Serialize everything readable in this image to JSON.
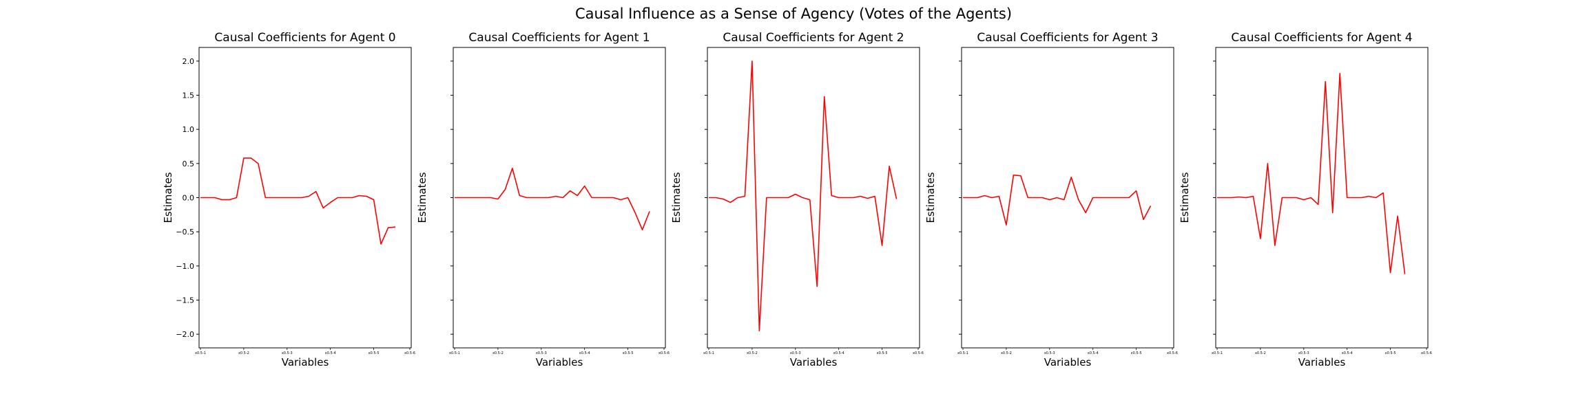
{
  "figure_title": "Causal Influence as a Sense of Agency (Votes of the Agents)",
  "chart_data": [
    {
      "type": "line",
      "title": "Causal Coefficients for Agent 0",
      "xlabel": "Variables",
      "ylabel": "Estimates",
      "ylim": [
        -2.2,
        2.2
      ],
      "y_ticks": [
        2.0,
        1.5,
        1.0,
        0.5,
        0.0,
        -0.5,
        -1.0,
        -1.5,
        -2.0
      ],
      "y_tick_labels": [
        "2.0",
        "1.5",
        "1.0",
        "0.5",
        "0.0",
        "−0.5",
        "−1.0",
        "−1.5",
        "−2.0"
      ],
      "x_tick_positions": [
        0,
        6,
        12,
        18,
        24,
        29
      ],
      "x_tick_labels": [
        "x0.5-1",
        "x0.5-2",
        "x0.5-3",
        "x0.5-4",
        "x0.5-5",
        "x0.5-6"
      ],
      "color": "#ff0000",
      "values": [
        0.0,
        0.0,
        0.0,
        -0.03,
        -0.03,
        0.0,
        0.58,
        0.58,
        0.5,
        0.0,
        0.0,
        0.0,
        0.0,
        0.0,
        0.0,
        0.02,
        0.09,
        -0.15,
        -0.07,
        0.0,
        0.0,
        0.0,
        0.03,
        0.02,
        -0.03,
        -0.68,
        -0.44,
        -0.43
      ]
    },
    {
      "type": "line",
      "title": "Causal Coefficients for Agent 1",
      "xlabel": "Variables",
      "ylabel": "Estimates",
      "ylim": [
        -2.2,
        2.2
      ],
      "x_tick_positions": [
        0,
        6,
        12,
        18,
        24,
        29
      ],
      "x_tick_labels": [
        "x0.5-1",
        "x0.5-2",
        "x0.5-3",
        "x0.5-4",
        "x0.5-5",
        "x0.5-6"
      ],
      "color": "#ff0000",
      "values": [
        0.0,
        0.0,
        0.0,
        0.0,
        0.0,
        0.0,
        -0.02,
        0.12,
        0.43,
        0.03,
        0.0,
        0.0,
        0.0,
        0.0,
        0.02,
        0.0,
        0.1,
        0.03,
        0.17,
        0.0,
        0.0,
        0.0,
        0.0,
        -0.03,
        0.0,
        -0.22,
        -0.47,
        -0.2
      ]
    },
    {
      "type": "line",
      "title": "Causal Coefficients for Agent 2",
      "xlabel": "Variables",
      "ylabel": "Estimates",
      "ylim": [
        -2.2,
        2.2
      ],
      "x_tick_positions": [
        0,
        6,
        12,
        18,
        24,
        29
      ],
      "x_tick_labels": [
        "x0.5-1",
        "x0.5-2",
        "x0.5-3",
        "x0.5-4",
        "x0.5-5",
        "x0.5-6"
      ],
      "color": "#ff0000",
      "values": [
        0.0,
        0.0,
        -0.02,
        -0.07,
        0.0,
        0.02,
        2.0,
        -1.95,
        0.0,
        0.0,
        0.0,
        0.0,
        0.05,
        0.0,
        -0.03,
        -1.3,
        1.48,
        0.03,
        0.0,
        0.0,
        0.0,
        0.02,
        -0.01,
        0.02,
        -0.7,
        0.46,
        -0.02
      ]
    },
    {
      "type": "line",
      "title": "Causal Coefficients for Agent 3",
      "xlabel": "Variables",
      "ylabel": "Estimates",
      "ylim": [
        -2.2,
        2.2
      ],
      "x_tick_positions": [
        0,
        6,
        12,
        18,
        24,
        29
      ],
      "x_tick_labels": [
        "x0.5-1",
        "x0.5-2",
        "x0.5-3",
        "x0.5-4",
        "x0.5-5",
        "x0.5-6"
      ],
      "color": "#ff0000",
      "values": [
        0.0,
        0.0,
        0.0,
        0.03,
        0.0,
        0.02,
        -0.4,
        0.33,
        0.32,
        0.0,
        0.0,
        0.0,
        -0.03,
        0.0,
        -0.03,
        0.3,
        -0.03,
        -0.22,
        0.0,
        0.0,
        0.0,
        0.0,
        0.0,
        0.0,
        0.1,
        -0.32,
        -0.12
      ]
    },
    {
      "type": "line",
      "title": "Causal Coefficients for Agent 4",
      "xlabel": "Variables",
      "ylabel": "Estimates",
      "ylim": [
        -2.2,
        2.2
      ],
      "x_tick_positions": [
        0,
        6,
        12,
        18,
        24,
        29
      ],
      "x_tick_labels": [
        "x0.5-1",
        "x0.5-2",
        "x0.5-3",
        "x0.5-4",
        "x0.5-5",
        "x0.5-6"
      ],
      "color": "#ff0000",
      "values": [
        0.0,
        0.0,
        0.0,
        0.01,
        0.0,
        0.02,
        -0.6,
        0.5,
        -0.7,
        0.0,
        0.0,
        0.0,
        -0.03,
        0.0,
        -0.1,
        1.7,
        -0.22,
        1.82,
        0.0,
        0.0,
        0.0,
        0.02,
        0.0,
        0.07,
        -1.1,
        -0.27,
        -1.12
      ]
    }
  ]
}
